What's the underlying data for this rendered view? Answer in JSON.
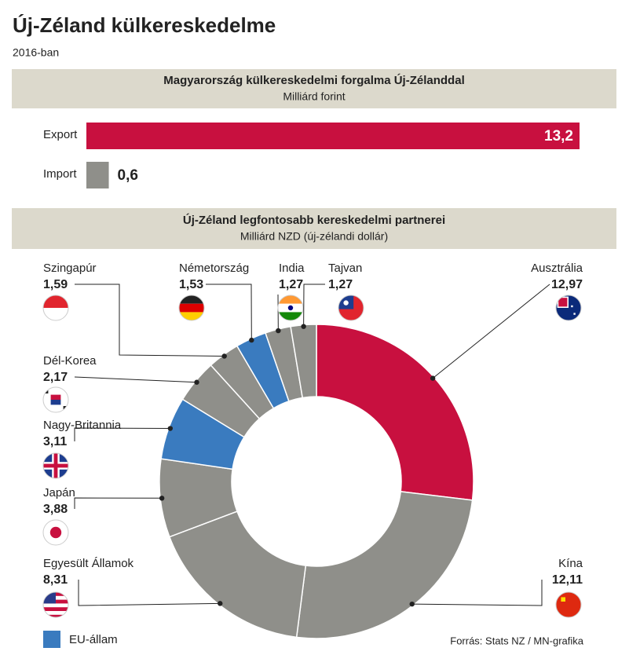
{
  "title": "Új-Zéland külkereskedelme",
  "subtitle": "2016-ban",
  "source": "Forrás: Stats NZ / MN-grafika",
  "chart_data": [
    {
      "type": "bar",
      "title": "Magyarország külkereskedelmi forgalma Új-Zélanddal",
      "subtitle": "Milliárd forint",
      "categories": [
        "Export",
        "Import"
      ],
      "values": [
        13.2,
        0.6
      ],
      "value_labels": [
        "13,2",
        "0,6"
      ],
      "colors": [
        "#c8103f",
        "#8f8f8a"
      ]
    },
    {
      "type": "donut",
      "title": "Új-Zéland legfontosabb kereskedelmi partnerei",
      "subtitle": "Milliárd NZD (új-zélandi dollár)",
      "categories": [
        "Ausztrália",
        "Kína",
        "Egyesült Államok",
        "Japán",
        "Nagy-Britannia",
        "Dél-Korea",
        "Szingapúr",
        "Németország",
        "India",
        "Tajvan"
      ],
      "values": [
        12.97,
        12.11,
        8.31,
        3.88,
        3.11,
        2.17,
        1.59,
        1.53,
        1.27,
        1.27
      ],
      "value_labels": [
        "12,97",
        "12,11",
        "8,31",
        "3,88",
        "3,11",
        "2,17",
        "1,59",
        "1,53",
        "1,27",
        "1,27"
      ],
      "colors": [
        "#c8103f",
        "#8f8f8a",
        "#8f8f8a",
        "#8f8f8a",
        "#3a7bbf",
        "#8f8f8a",
        "#8f8f8a",
        "#3a7bbf",
        "#8f8f8a",
        "#8f8f8a"
      ],
      "legend": {
        "label": "EU-állam",
        "color": "#3a7bbf"
      }
    }
  ]
}
